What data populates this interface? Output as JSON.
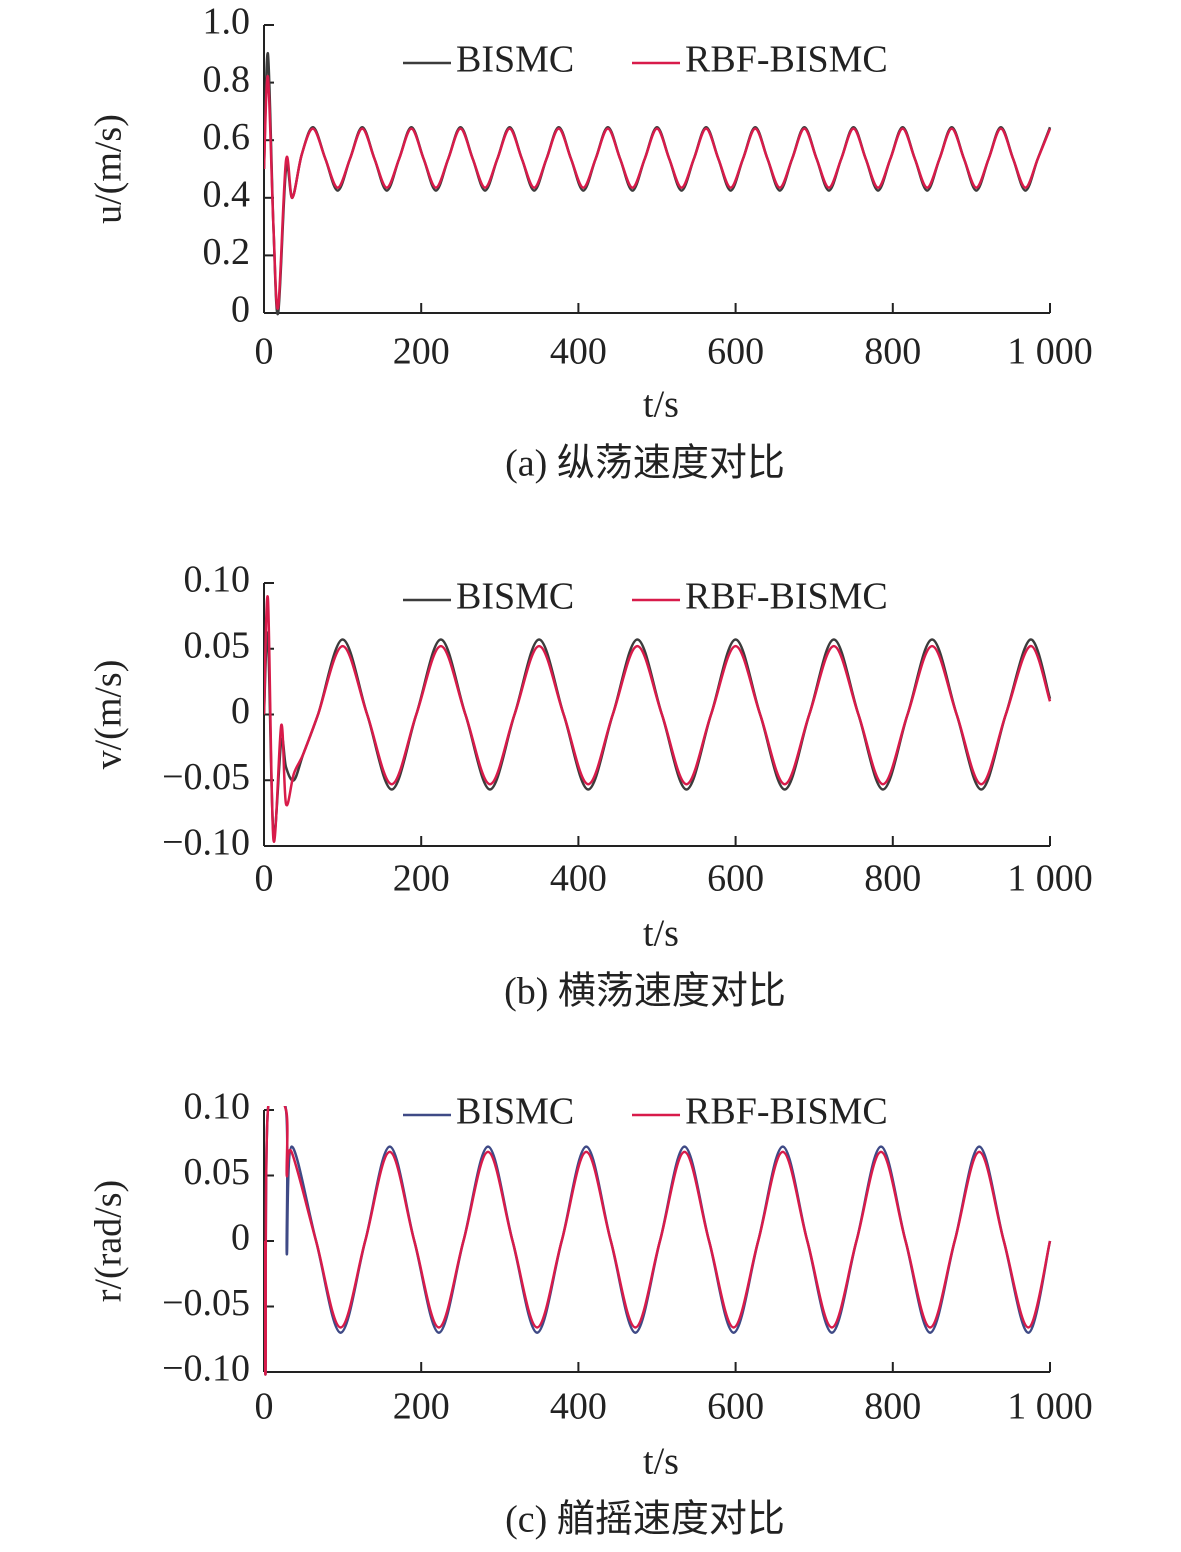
{
  "chart_data": [
    {
      "type": "line",
      "caption": "(a) 纵荡速度对比",
      "x_label": "t/s",
      "y_label": "u/(m/s)",
      "legend": "upper center",
      "x": [
        0,
        5,
        12,
        18,
        28,
        36,
        48,
        62.5,
        78.125,
        93.75,
        109.375,
        125,
        140.625,
        156.25,
        171.875,
        187.5,
        203.125,
        218.75,
        234.375,
        250,
        265.625,
        281.25,
        296.875,
        312.5,
        328.125,
        343.75,
        359.375,
        375,
        390.625,
        406.25,
        421.875,
        437.5,
        453.125,
        468.75,
        484.375,
        500,
        515.625,
        531.25,
        546.875,
        562.5,
        578.125,
        593.75,
        609.375,
        625,
        640.625,
        656.25,
        671.875,
        687.5,
        703.125,
        718.75,
        734.375,
        750,
        765.625,
        781.25,
        796.875,
        812.5,
        828.125,
        843.75,
        859.375,
        875,
        890.625,
        906.25,
        921.875,
        937.5,
        953.125,
        968.75,
        984.375,
        1000
      ],
      "series": [
        {
          "name": "BISMC",
          "color": "#3c3c3c",
          "values": [
            0.5,
            0.9,
            0.3,
            0.0,
            0.5,
            0.4,
            0.55,
            0.645,
            0.535,
            0.425,
            0.535,
            0.645,
            0.535,
            0.425,
            0.535,
            0.645,
            0.535,
            0.425,
            0.535,
            0.645,
            0.535,
            0.425,
            0.535,
            0.645,
            0.535,
            0.425,
            0.535,
            0.645,
            0.535,
            0.425,
            0.535,
            0.645,
            0.535,
            0.425,
            0.535,
            0.645,
            0.535,
            0.425,
            0.535,
            0.645,
            0.535,
            0.425,
            0.535,
            0.645,
            0.535,
            0.425,
            0.535,
            0.645,
            0.535,
            0.425,
            0.535,
            0.645,
            0.535,
            0.425,
            0.535,
            0.645,
            0.535,
            0.425,
            0.535,
            0.645,
            0.535,
            0.425,
            0.535,
            0.645,
            0.535,
            0.425,
            0.535,
            0.645
          ]
        },
        {
          "name": "RBF-BISMC",
          "color": "#d81b4a",
          "values": [
            0.5,
            0.82,
            0.3,
            0.02,
            0.53,
            0.4,
            0.55,
            0.64,
            0.535,
            0.435,
            0.535,
            0.64,
            0.535,
            0.435,
            0.535,
            0.64,
            0.535,
            0.435,
            0.535,
            0.64,
            0.535,
            0.435,
            0.535,
            0.64,
            0.535,
            0.435,
            0.535,
            0.64,
            0.535,
            0.435,
            0.535,
            0.64,
            0.535,
            0.435,
            0.535,
            0.64,
            0.535,
            0.435,
            0.535,
            0.64,
            0.535,
            0.435,
            0.535,
            0.64,
            0.535,
            0.435,
            0.535,
            0.64,
            0.535,
            0.435,
            0.535,
            0.64,
            0.535,
            0.435,
            0.535,
            0.64,
            0.535,
            0.435,
            0.535,
            0.64,
            0.535,
            0.435,
            0.535,
            0.64,
            0.535,
            0.435,
            0.535,
            0.64
          ]
        }
      ],
      "xlim": [
        0,
        1000
      ],
      "xticks": [
        0,
        200,
        400,
        600,
        800,
        {
          "value": 1000,
          "label": "1 000"
        }
      ],
      "ylim": [
        0,
        1
      ],
      "yticks": [
        0,
        0.2,
        0.4,
        0.6,
        0.8,
        {
          "value": 1,
          "label": "1.0"
        }
      ]
    },
    {
      "type": "line",
      "caption": "(b) 横荡速度对比",
      "x_label": "t/s",
      "y_label": "v/(m/s)",
      "legend": "upper center",
      "x": [
        0,
        5,
        12,
        22,
        28,
        38,
        50,
        68.75,
        100,
        131.25,
        162.5,
        193.75,
        225,
        256.25,
        287.5,
        318.75,
        350,
        381.25,
        412.5,
        443.75,
        475,
        506.25,
        537.5,
        568.75,
        600,
        631.25,
        662.5,
        693.75,
        725,
        756.25,
        787.5,
        818.75,
        850,
        881.25,
        912.5,
        943.75,
        975,
        1000
      ],
      "series": [
        {
          "name": "BISMC",
          "color": "#3c3c3c",
          "values": [
            0,
            0.06,
            -0.09,
            -0.02,
            -0.04,
            -0.05,
            -0.03,
            0,
            0.057,
            0,
            -0.057,
            0,
            0.057,
            0,
            -0.057,
            0,
            0.057,
            0,
            -0.057,
            0,
            0.057,
            0,
            -0.057,
            0,
            0.057,
            0,
            -0.057,
            0,
            0.057,
            0,
            -0.057,
            0,
            0.057,
            0,
            -0.057,
            0,
            0.057,
            0.012
          ]
        },
        {
          "name": "RBF-BISMC",
          "color": "#d81b4a",
          "values": [
            0,
            0.088,
            -0.095,
            -0.008,
            -0.068,
            -0.045,
            -0.03,
            0,
            0.052,
            0,
            -0.053,
            0,
            0.052,
            0,
            -0.053,
            0,
            0.052,
            0,
            -0.053,
            0,
            0.052,
            0,
            -0.053,
            0,
            0.052,
            0,
            -0.053,
            0,
            0.052,
            0,
            -0.053,
            0,
            0.052,
            0,
            -0.053,
            0,
            0.052,
            0.01
          ]
        }
      ],
      "xlim": [
        0,
        1000
      ],
      "xticks": [
        0,
        200,
        400,
        600,
        800,
        {
          "value": 1000,
          "label": "1 000"
        }
      ],
      "ylim": [
        -0.1,
        0.1
      ],
      "yticks": [
        {
          "value": -0.1,
          "label": "−0.10"
        },
        {
          "value": -0.05,
          "label": "−0.05"
        },
        0,
        0.05,
        {
          "value": 0.1,
          "label": "0.10"
        }
      ]
    },
    {
      "type": "line",
      "caption": "(c) 艏摇速度对比",
      "x_label": "t/s",
      "y_label": "r/(rad/s)",
      "legend": "upper center",
      "x": [
        0,
        2,
        5,
        28,
        29,
        35,
        66.25,
        97.5,
        128.75,
        160,
        191.25,
        222.5,
        253.75,
        285,
        316.25,
        347.5,
        378.75,
        410,
        441.25,
        472.5,
        503.75,
        535,
        566.25,
        597.5,
        628.75,
        660,
        691.25,
        722.5,
        753.75,
        785,
        816.25,
        847.5,
        878.75,
        910,
        941.25,
        972.5,
        1000
      ],
      "series": [
        {
          "name": "BISMC",
          "color": "#3f4a86",
          "values": [
            0,
            -0.1,
            0.1,
            0.1,
            -0.01,
            0.072,
            0,
            -0.07,
            0,
            0.072,
            0,
            -0.07,
            0,
            0.072,
            0,
            -0.07,
            0,
            0.072,
            0,
            -0.07,
            0,
            0.072,
            0,
            -0.07,
            0,
            0.072,
            0,
            -0.07,
            0,
            0.072,
            0,
            -0.07,
            0,
            0.072,
            0,
            -0.07,
            0
          ]
        },
        {
          "name": "RBF-BISMC",
          "color": "#d81b4a",
          "values": [
            0,
            -0.1,
            0.1,
            0.1,
            0.05,
            0.068,
            0,
            -0.066,
            0,
            0.068,
            0,
            -0.066,
            0,
            0.068,
            0,
            -0.066,
            0,
            0.068,
            0,
            -0.066,
            0,
            0.068,
            0,
            -0.066,
            0,
            0.068,
            0,
            -0.066,
            0,
            0.068,
            0,
            -0.066,
            0,
            0.068,
            0,
            -0.066,
            0
          ]
        }
      ],
      "xlim": [
        0,
        1000
      ],
      "xticks": [
        0,
        200,
        400,
        600,
        800,
        {
          "value": 1000,
          "label": "1 000"
        }
      ],
      "ylim": [
        -0.1,
        0.1
      ],
      "yticks": [
        {
          "value": -0.1,
          "label": "−0.10"
        },
        {
          "value": -0.05,
          "label": "−0.05"
        },
        0,
        0.05,
        {
          "value": 0.1,
          "label": "0.10"
        }
      ]
    }
  ]
}
